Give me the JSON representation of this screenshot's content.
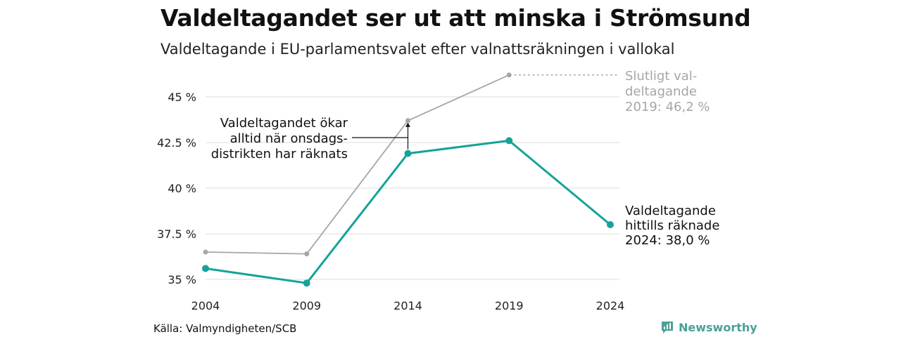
{
  "header": {
    "title": "Valdeltagandet ser ut att minska i Strömsund",
    "subtitle": "Valdeltagande i EU-parlamentsvalet efter valnattsräkningen i vallokal"
  },
  "footer": {
    "source": "Källa: Valmyndigheten/SCB",
    "brand": "Newsworthy"
  },
  "colors": {
    "counted": "#14a39a",
    "final": "#a6a6a6",
    "grid": "#e3e3e3",
    "brand": "#4a9f99"
  },
  "icons": {
    "brand_logo": "bar-chart-badge-icon"
  },
  "chart_data": {
    "type": "line",
    "x": [
      2004,
      2009,
      2014,
      2019,
      2024
    ],
    "xticks": [
      "2004",
      "2009",
      "2014",
      "2019",
      "2024"
    ],
    "ylim": [
      34.6,
      46.4
    ],
    "yticks": [
      35,
      37.5,
      40,
      42.5,
      45
    ],
    "ytick_labels": [
      "35 %",
      "37.5 %",
      "40 %",
      "42.5 %",
      "45 %"
    ],
    "grid": true,
    "series": [
      {
        "key": "final",
        "values": [
          36.5,
          36.4,
          43.7,
          46.2,
          null
        ]
      },
      {
        "key": "counted",
        "values": [
          35.6,
          34.8,
          41.9,
          42.6,
          38.0
        ]
      }
    ],
    "annotations": {
      "final_label": [
        "Slutligt val-",
        "deltagande",
        "2019: 46,2 %"
      ],
      "counted_label": [
        "Valdeltagande",
        "hittills räknade",
        "2024: 38,0 %"
      ],
      "wednesday_note": [
        "Valdeltagandet ökar",
        "alltid när onsdags-",
        "distrikten har räknats"
      ]
    }
  }
}
